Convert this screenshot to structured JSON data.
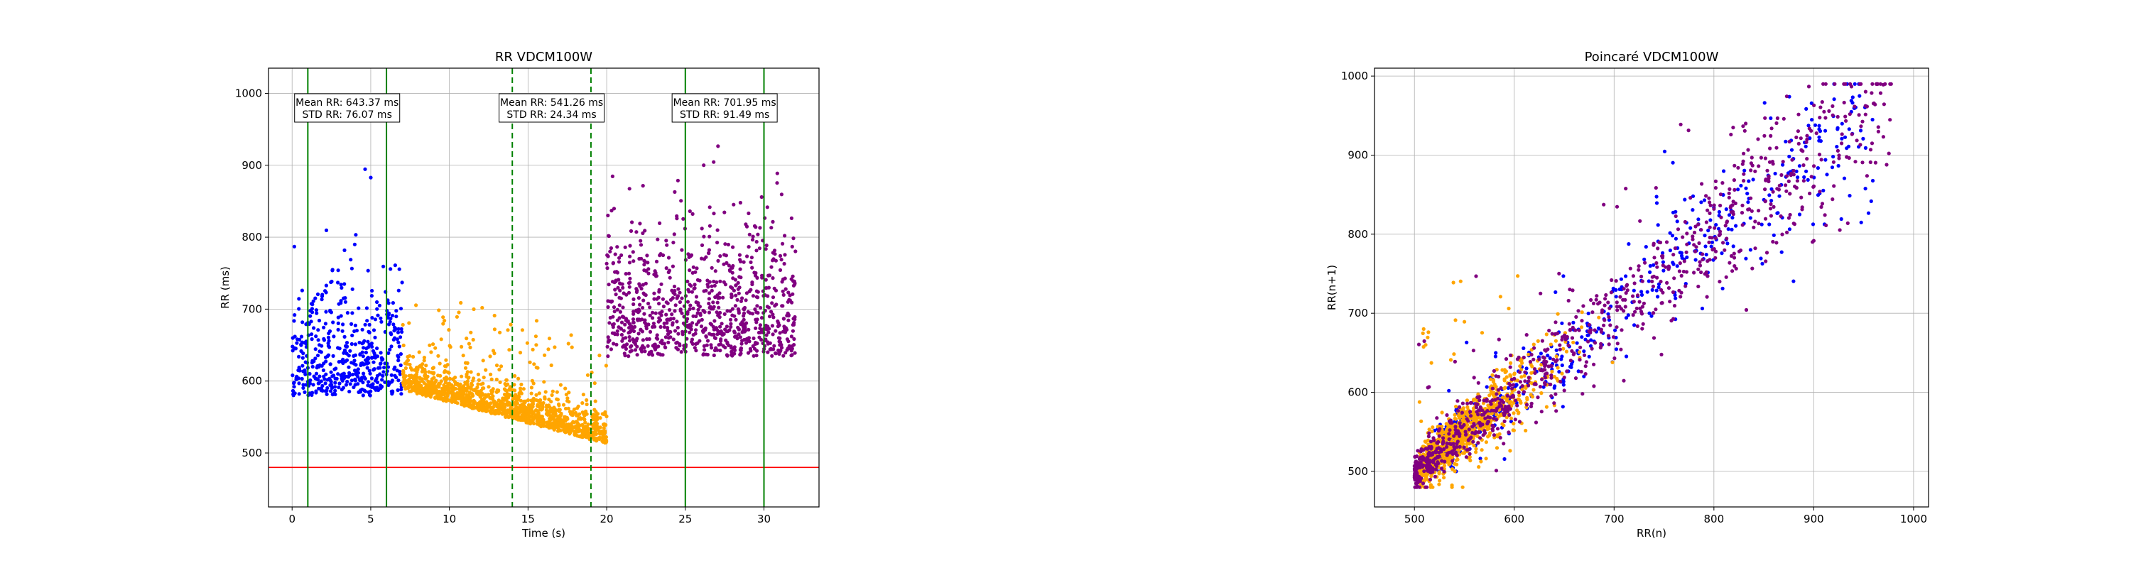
{
  "chart_data": [
    {
      "type": "scatter",
      "title": "RR VDCM100W",
      "xlabel": "Time (s)",
      "ylabel": "RR (ms)",
      "xlim": [
        -1.5,
        33.5
      ],
      "ylim": [
        425,
        1035
      ],
      "xticks": [
        "0",
        "5",
        "10",
        "15",
        "20",
        "25",
        "30"
      ],
      "yticks": [
        "500",
        "600",
        "700",
        "800",
        "900",
        "1000"
      ],
      "grid": true,
      "threshold_line": {
        "y": 480,
        "color": "#ff0000"
      },
      "vlines": [
        {
          "x": 1,
          "style": "solid",
          "color": "#008000"
        },
        {
          "x": 6,
          "style": "solid",
          "color": "#008000"
        },
        {
          "x": 14,
          "style": "dashed",
          "color": "#008000"
        },
        {
          "x": 19,
          "style": "dashed",
          "color": "#008000"
        },
        {
          "x": 25,
          "style": "solid",
          "color": "#008000"
        },
        {
          "x": 30,
          "style": "solid",
          "color": "#008000"
        }
      ],
      "annotations": [
        {
          "x": 3.5,
          "line1": "Mean RR: 643.37 ms",
          "line2": "STD RR: 76.07 ms"
        },
        {
          "x": 16.5,
          "line1": "Mean RR: 541.26 ms",
          "line2": "STD RR: 24.34 ms"
        },
        {
          "x": 27.5,
          "line1": "Mean RR: 701.95 ms",
          "line2": "STD RR: 91.49 ms"
        }
      ],
      "series": [
        {
          "color": "#0000ff",
          "x_range": [
            0,
            7
          ],
          "baseline": 610,
          "spread": 75,
          "count": 500
        },
        {
          "color": "#ffa500",
          "x_range": [
            7,
            20
          ],
          "baseline_start": 600,
          "baseline_end": 525,
          "spread": 35,
          "count": 1300
        },
        {
          "color": "#800080",
          "x_range": [
            20,
            32
          ],
          "baseline": 670,
          "spread": 90,
          "count": 900
        }
      ]
    },
    {
      "type": "scatter",
      "title": "Poincaré VDCM100W",
      "xlabel": "RR(n)",
      "ylabel": "RR(n+1)",
      "xlim": [
        460,
        1015
      ],
      "ylim": [
        455,
        1010
      ],
      "xticks": [
        "500",
        "600",
        "700",
        "800",
        "900",
        "1000"
      ],
      "yticks": [
        "500",
        "600",
        "700",
        "800",
        "900",
        "1000"
      ],
      "grid": true,
      "series": [
        {
          "color": "#0000ff",
          "range": [
            520,
            960
          ],
          "count": 450
        },
        {
          "color": "#ffa500",
          "range": [
            485,
            700
          ],
          "count": 900
        },
        {
          "color": "#800080",
          "range": [
            500,
            980
          ],
          "count": 900
        }
      ]
    }
  ]
}
